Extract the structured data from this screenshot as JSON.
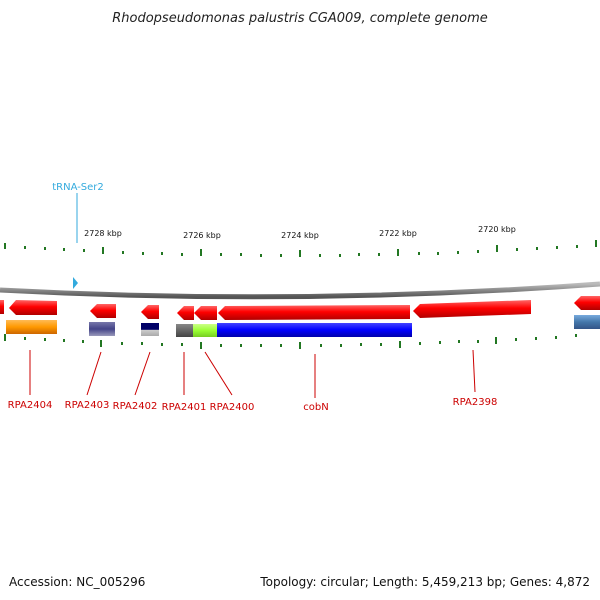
{
  "header": {
    "title": "Rhodopseudomonas palustris CGA009, complete genome"
  },
  "footer": {
    "accession": "Accession: NC_005296",
    "summary": "Topology: circular; Length: 5,459,213 bp; Genes: 4,872"
  },
  "scale": {
    "ticks": [
      "2728 kbp",
      "2726 kbp",
      "2724 kbp",
      "2722 kbp",
      "2720 kbp"
    ]
  },
  "trna": {
    "label": "tRNA-Ser2",
    "color": "#33aadd"
  },
  "genes": [
    {
      "label": "RPA2404",
      "arrow_color": "#ff0000",
      "domain_color": "#ff9900"
    },
    {
      "label": "RPA2403",
      "arrow_color": "#ff0000",
      "domain_color": "#444488"
    },
    {
      "label": "RPA2402",
      "arrow_color": "#ff0000",
      "domain_color": "#000066"
    },
    {
      "label": "RPA2401",
      "arrow_color": "#ff0000",
      "domain_color": "#666666"
    },
    {
      "label": "RPA2400",
      "arrow_color": "#ff0000",
      "domain_color": "#99ff33"
    },
    {
      "label": "cobN",
      "arrow_color": "#ff0000",
      "domain_color": "#0000ff"
    },
    {
      "label": "RPA2398",
      "arrow_color": "#ff0000",
      "domain_color": ""
    }
  ],
  "colors": {
    "backbone": "#888888",
    "tick": "#227722",
    "gene_label": "#cc0000",
    "steelblue_domain": "#4477aa"
  }
}
